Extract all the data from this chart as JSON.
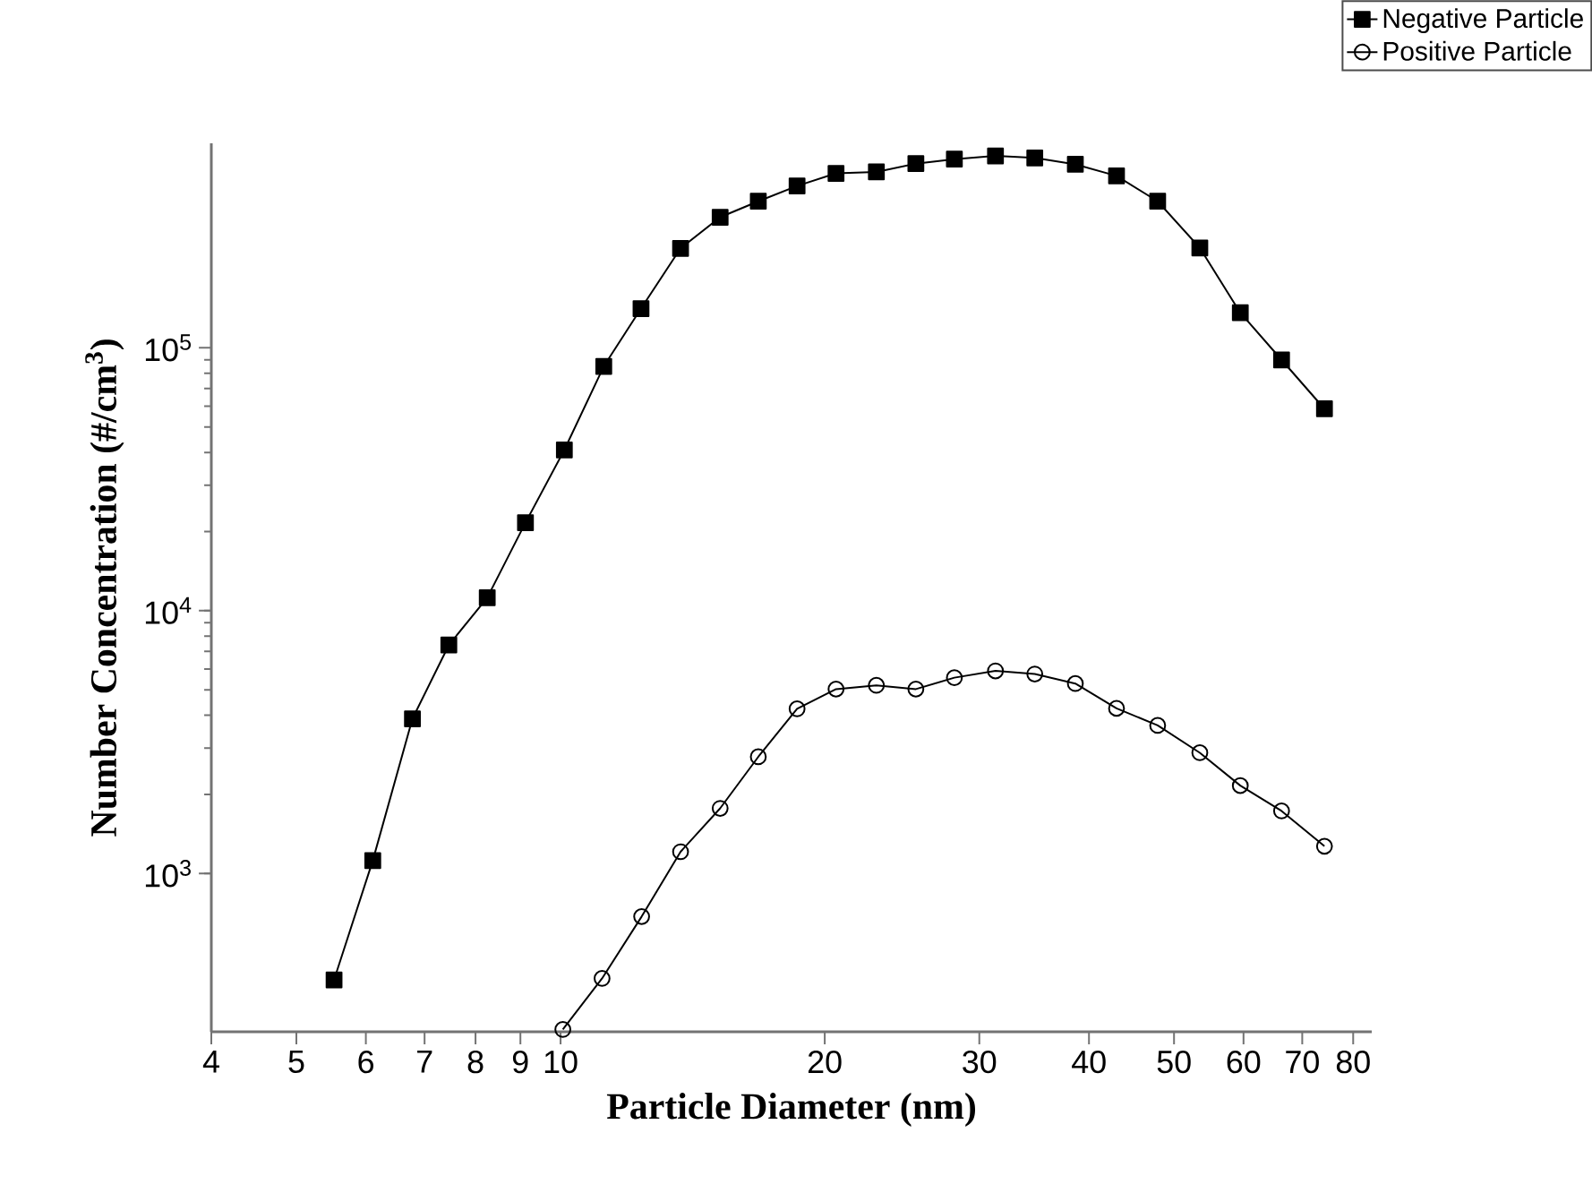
{
  "chart_data": {
    "type": "line",
    "xlabel": "Particle Diameter (nm)",
    "ylabel": "Number Concentration (#/cm$^{3}$)",
    "log": "xy",
    "xlim": [
      4,
      84
    ],
    "ylim": [
      250,
      600000
    ],
    "xticks": [
      4,
      5,
      6,
      7,
      8,
      9,
      10,
      20,
      30,
      40,
      50,
      60,
      70,
      80
    ],
    "yticks": [
      {
        "value": 1000,
        "label": "10$^{3}$"
      },
      {
        "value": 10000,
        "label": "10$^{4}$"
      },
      {
        "value": 100000,
        "label": "10$^{5}$"
      }
    ],
    "legend": "top right",
    "line_style": "solid",
    "grid": false,
    "series": [
      {
        "name": "Negative Particle",
        "color": "#000000",
        "marker": "square",
        "x": [
          5.52,
          6.11,
          6.78,
          7.46,
          8.25,
          9.12,
          10.1,
          11.2,
          12.35,
          13.7,
          15.2,
          16.8,
          18.6,
          20.6,
          22.9,
          25.4,
          28.1,
          31.3,
          34.7,
          38.6,
          43.0,
          47.9,
          53.5,
          59.5,
          66.3,
          74.2
        ],
        "values": [
          394,
          1120,
          3880,
          7400,
          11200,
          21600,
          40900,
          85000,
          141000,
          239000,
          314000,
          361000,
          413000,
          461000,
          467000,
          502000,
          522000,
          537000,
          528000,
          499000,
          451000,
          361000,
          240000,
          136000,
          90000,
          58600
        ]
      },
      {
        "name": "Positive Particle",
        "color": "#000000",
        "marker": "circle",
        "x": [
          10.06,
          11.15,
          12.37,
          13.7,
          15.2,
          16.8,
          18.6,
          20.6,
          22.9,
          25.4,
          28.1,
          31.3,
          34.7,
          38.6,
          43.0,
          47.9,
          53.5,
          59.5,
          66.3,
          74.2
        ],
        "values": [
          255,
          399,
          686,
          1210,
          1770,
          2780,
          4230,
          5030,
          5200,
          5030,
          5560,
          5900,
          5740,
          5280,
          4250,
          3660,
          2880,
          2160,
          1730,
          1270
        ]
      }
    ]
  }
}
